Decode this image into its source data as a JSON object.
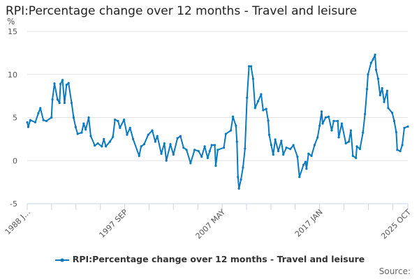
{
  "title": "RPI:Percentage change over 12 months - Travel and leisure",
  "source_label": "Source:",
  "colors": {
    "series": "#0a7ac0",
    "grid": "#e3e3e3",
    "axis": "#c8d6e8"
  },
  "chart_data": {
    "type": "line",
    "title": "RPI:Percentage change over 12 months - Travel and leisure",
    "ylabel": "%",
    "xlabel": "",
    "ylim": [
      -5,
      15
    ],
    "yticks": [
      "-5",
      "0",
      "5",
      "10",
      "15"
    ],
    "ytick_values": [
      -5,
      0,
      5,
      10,
      15
    ],
    "x_start": "1988 JAN",
    "x_end": "2025 OCT",
    "x_total_months": 453,
    "xtick_months": [
      0,
      29,
      58,
      87,
      116,
      145,
      174,
      203,
      232,
      261,
      290,
      319,
      348,
      377,
      406,
      435,
      453
    ],
    "xtick_labels": [
      {
        "month": 0,
        "label": "1988 J…"
      },
      {
        "month": 116,
        "label": "1997 SEP"
      },
      {
        "month": 232,
        "label": "2007 MAY"
      },
      {
        "month": 348,
        "label": "2017 JAN"
      },
      {
        "month": 453,
        "label": "2025 OCT"
      }
    ],
    "grid": true,
    "legend_position": "bottom",
    "series": [
      {
        "name": "RPI:Percentage change over 12 months - Travel and leisure",
        "x_year": [
          1988.0,
          1988.1,
          1988.3,
          1988.8,
          1989.1,
          1989.3,
          1989.6,
          1989.9,
          1990.4,
          1990.5,
          1990.7,
          1991.0,
          1991.2,
          1991.3,
          1991.5,
          1991.7,
          1991.9,
          1992.1,
          1992.4,
          1992.6,
          1992.8,
          1993.0,
          1993.4,
          1993.6,
          1993.8,
          1994.1,
          1994.3,
          1994.7,
          1995.0,
          1995.4,
          1995.6,
          1995.8,
          1996.2,
          1996.5,
          1996.7,
          1997.0,
          1997.2,
          1997.6,
          1997.9,
          1998.2,
          1998.5,
          1999.1,
          1999.3,
          1999.6,
          2000.0,
          2000.4,
          2000.7,
          2000.9,
          2001.3,
          2001.6,
          2001.8,
          2002.2,
          2002.5,
          2002.9,
          2003.2,
          2003.5,
          2003.8,
          2004.2,
          2004.6,
          2005.0,
          2005.3,
          2005.6,
          2005.9,
          2006.1,
          2006.3,
          2006.6,
          2006.7,
          2006.9,
          2007.5,
          2007.7,
          2008.2,
          2008.4,
          2008.7,
          2008.8,
          2008.9,
          2009.0,
          2009.2,
          2009.4,
          2009.6,
          2009.8,
          2010.0,
          2010.2,
          2010.4,
          2010.6,
          2010.9,
          2011.2,
          2011.4,
          2011.7,
          2011.9,
          2012.0,
          2012.2,
          2012.4,
          2012.6,
          2012.9,
          2013.2,
          2013.4,
          2013.7,
          2014.1,
          2014.4,
          2014.8,
          2015.0,
          2015.4,
          2015.6,
          2015.7,
          2015.9,
          2016.2,
          2016.5,
          2016.8,
          2017.0,
          2017.2,
          2017.3,
          2017.6,
          2017.9,
          2018.2,
          2018.4,
          2018.8,
          2018.9,
          2019.2,
          2019.6,
          2019.9,
          2020.1,
          2020.3,
          2020.6,
          2020.7,
          2021.0,
          2021.3,
          2021.5,
          2021.7,
          2021.8,
          2022.1,
          2022.3,
          2022.5,
          2022.6,
          2022.8,
          2023.0,
          2023.2,
          2023.4,
          2023.7,
          2023.8,
          2024.2,
          2024.4,
          2024.6,
          2024.7,
          2025.0,
          2025.2,
          2025.4,
          2025.75
        ],
        "values": [
          4.45,
          3.9,
          4.7,
          4.45,
          5.5,
          6.1,
          4.7,
          4.6,
          5.0,
          7.1,
          8.95,
          7.1,
          6.7,
          8.9,
          9.35,
          6.7,
          8.8,
          9.0,
          6.7,
          5.0,
          3.9,
          3.1,
          3.25,
          4.3,
          3.6,
          5.0,
          2.85,
          1.75,
          2.0,
          1.65,
          2.5,
          1.65,
          2.2,
          2.75,
          4.75,
          4.6,
          3.8,
          4.75,
          3.0,
          3.8,
          2.5,
          0.55,
          1.65,
          1.9,
          3.0,
          3.5,
          2.2,
          2.85,
          0.8,
          2.0,
          0.0,
          1.9,
          0.7,
          2.6,
          2.85,
          1.5,
          1.25,
          -0.3,
          1.25,
          1.1,
          0.45,
          1.65,
          0.3,
          1.1,
          1.8,
          1.8,
          -0.6,
          1.25,
          1.5,
          3.1,
          3.5,
          5.1,
          4.05,
          2.2,
          -1.9,
          -3.25,
          -2.2,
          -0.8,
          1.4,
          7.3,
          10.95,
          10.95,
          9.5,
          6.1,
          6.9,
          7.7,
          5.85,
          6.0,
          4.65,
          3.0,
          1.8,
          0.7,
          2.45,
          1.1,
          2.3,
          0.7,
          1.5,
          1.35,
          1.8,
          0.45,
          -1.9,
          -0.5,
          -0.15,
          -0.95,
          0.8,
          0.55,
          1.8,
          2.7,
          4.05,
          5.7,
          4.3,
          5.0,
          5.1,
          3.5,
          4.6,
          4.6,
          2.7,
          4.3,
          2.0,
          2.2,
          3.5,
          0.55,
          0.3,
          1.65,
          1.35,
          3.25,
          5.4,
          8.3,
          10.0,
          11.35,
          11.75,
          12.3,
          10.55,
          9.5,
          7.6,
          8.4,
          6.8,
          8.1,
          6.1,
          5.55,
          4.6,
          3.3,
          1.25,
          1.1,
          1.8,
          3.8,
          3.95
        ]
      }
    ]
  }
}
